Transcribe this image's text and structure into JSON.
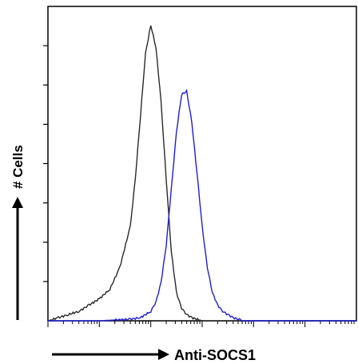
{
  "chart_data": {
    "type": "area",
    "xlabel": "Anti-SOCS1",
    "ylabel": "# Cells",
    "x_scale": "log",
    "xlim": [
      1,
      1000000
    ],
    "ylim": [
      0,
      1
    ],
    "grid": false,
    "legend": "none",
    "series": [
      {
        "color": "#2a2a2a",
        "x": [
          1,
          1.6,
          2.5,
          4,
          6.3,
          10,
          16,
          25,
          40,
          50,
          63,
          79,
          100,
          126,
          158,
          200,
          251,
          316,
          398,
          500,
          630,
          1000,
          2500,
          10000,
          1000000
        ],
        "y": [
          0,
          0.01,
          0.02,
          0.03,
          0.05,
          0.07,
          0.1,
          0.17,
          0.3,
          0.45,
          0.65,
          0.85,
          0.94,
          0.87,
          0.7,
          0.45,
          0.22,
          0.09,
          0.04,
          0.02,
          0.01,
          0.0,
          0,
          0,
          0
        ]
      },
      {
        "color": "#1f1fd6",
        "x": [
          1,
          10,
          40,
          63,
          100,
          126,
          158,
          200,
          251,
          316,
          398,
          500,
          630,
          794,
          1000,
          1260,
          1580,
          2000,
          2500,
          3160,
          4000,
          6300,
          10000,
          1000000
        ],
        "y": [
          0,
          0,
          0.005,
          0.01,
          0.03,
          0.06,
          0.12,
          0.24,
          0.42,
          0.6,
          0.72,
          0.73,
          0.63,
          0.47,
          0.3,
          0.17,
          0.09,
          0.05,
          0.03,
          0.02,
          0.01,
          0.0,
          0,
          0
        ]
      }
    ]
  }
}
